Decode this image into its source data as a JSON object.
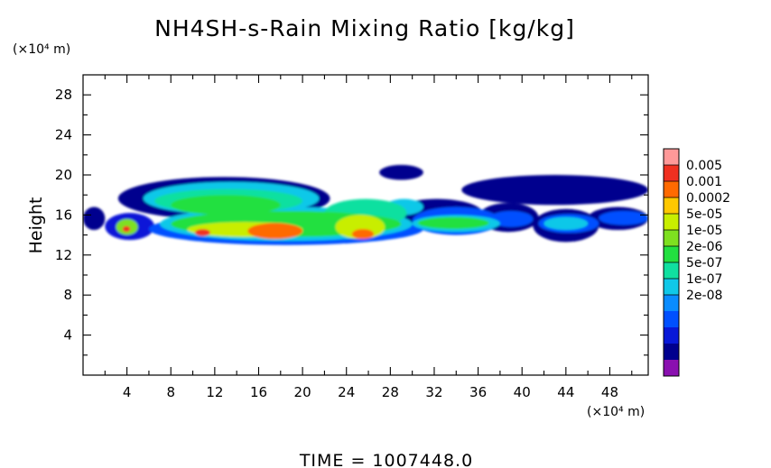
{
  "chart_data": {
    "type": "heatmap",
    "title": "NH4SH-s-Rain Mixing Ratio [kg/kg]",
    "xlabel": "",
    "ylabel": "Height",
    "x_unit": "(×10⁴ m)",
    "y_unit": "(×10⁴ m)",
    "xlim": [
      0,
      51.5
    ],
    "ylim": [
      0,
      30
    ],
    "x_ticks": [
      4,
      8,
      12,
      16,
      20,
      24,
      28,
      32,
      36,
      40,
      44,
      48
    ],
    "y_ticks": [
      4,
      8,
      12,
      16,
      20,
      24,
      28
    ],
    "grid": false,
    "footer": "TIME  =  1007448.0",
    "colorbar": {
      "labels": [
        "0.005",
        "0.001",
        "0.0002",
        "5e-05",
        "1e-05",
        "2e-06",
        "5e-07",
        "1e-07",
        "2e-08"
      ],
      "colors": [
        "#ff9999",
        "#f03020",
        "#ff6a00",
        "#ffc800",
        "#c8ee00",
        "#7ee020",
        "#22e040",
        "#10e0a0",
        "#10c8e8",
        "#0a8cff",
        "#0050ff",
        "#0818d8",
        "#00008e",
        "#8a10b0"
      ]
    },
    "regions": [
      {
        "x": [
          0,
          2
        ],
        "y": [
          14.5,
          16.8
        ],
        "level": 12
      },
      {
        "x": [
          2,
          6.5
        ],
        "y": [
          13.5,
          16.2
        ],
        "level": 11
      },
      {
        "x": [
          3,
          5
        ],
        "y": [
          14,
          15.6
        ],
        "level": 5
      },
      {
        "x": [
          3.6,
          4.3
        ],
        "y": [
          14.3,
          14.9
        ],
        "level": 1
      },
      {
        "x": [
          3.2,
          22.5
        ],
        "y": [
          15.5,
          19.8
        ],
        "level": 12
      },
      {
        "x": [
          5.5,
          21.5
        ],
        "y": [
          16,
          19.3
        ],
        "level": 8
      },
      {
        "x": [
          6.5,
          20
        ],
        "y": [
          16.2,
          18.6
        ],
        "level": 7
      },
      {
        "x": [
          8,
          18
        ],
        "y": [
          16,
          18
        ],
        "level": 6
      },
      {
        "x": [
          6,
          31
        ],
        "y": [
          13,
          16.2
        ],
        "level": 10
      },
      {
        "x": [
          7,
          30
        ],
        "y": [
          13.4,
          16.8
        ],
        "level": 8
      },
      {
        "x": [
          8,
          29
        ],
        "y": [
          13.8,
          16.4
        ],
        "level": 6
      },
      {
        "x": [
          9.5,
          20
        ],
        "y": [
          13.8,
          15.3
        ],
        "level": 4
      },
      {
        "x": [
          10.2,
          11.6
        ],
        "y": [
          13.9,
          14.6
        ],
        "level": 1
      },
      {
        "x": [
          15,
          20
        ],
        "y": [
          13.6,
          15.2
        ],
        "level": 2
      },
      {
        "x": [
          16.8,
          18.5
        ],
        "y": [
          13.8,
          14.9
        ],
        "level": 2
      },
      {
        "x": [
          22,
          29.5
        ],
        "y": [
          14.8,
          17.6
        ],
        "level": 7
      },
      {
        "x": [
          23,
          27.5
        ],
        "y": [
          13.6,
          16
        ],
        "level": 4
      },
      {
        "x": [
          24.5,
          26.5
        ],
        "y": [
          13.6,
          14.6
        ],
        "level": 2
      },
      {
        "x": [
          27.5,
          31
        ],
        "y": [
          16,
          17.6
        ],
        "level": 8
      },
      {
        "x": [
          28,
          36.5
        ],
        "y": [
          14.5,
          17.6
        ],
        "level": 12
      },
      {
        "x": [
          30,
          38
        ],
        "y": [
          14,
          16.8
        ],
        "level": 10
      },
      {
        "x": [
          30,
          38
        ],
        "y": [
          14.3,
          16
        ],
        "level": 8
      },
      {
        "x": [
          30.5,
          37
        ],
        "y": [
          14.6,
          15.8
        ],
        "level": 6
      },
      {
        "x": [
          36,
          41.5
        ],
        "y": [
          14.3,
          17.2
        ],
        "level": 12
      },
      {
        "x": [
          37,
          41
        ],
        "y": [
          14.8,
          16.4
        ],
        "level": 10
      },
      {
        "x": [
          41,
          47
        ],
        "y": [
          13.3,
          16.6
        ],
        "level": 12
      },
      {
        "x": [
          41.5,
          47
        ],
        "y": [
          14.2,
          16.1
        ],
        "level": 10
      },
      {
        "x": [
          42,
          46
        ],
        "y": [
          14.5,
          15.8
        ],
        "level": 8
      },
      {
        "x": [
          46,
          51.5
        ],
        "y": [
          14.5,
          16.8
        ],
        "level": 12
      },
      {
        "x": [
          47,
          51.5
        ],
        "y": [
          15,
          16.4
        ],
        "level": 10
      },
      {
        "x": [
          34.5,
          51.5
        ],
        "y": [
          17,
          20
        ],
        "level": 12
      },
      {
        "x": [
          36,
          50
        ],
        "y": [
          17.3,
          19.2
        ],
        "level": 13
      },
      {
        "x": [
          27,
          31
        ],
        "y": [
          19.5,
          21
        ],
        "level": 12
      },
      {
        "x": [
          28,
          30
        ],
        "y": [
          19.8,
          20.7
        ],
        "level": 13
      }
    ]
  }
}
